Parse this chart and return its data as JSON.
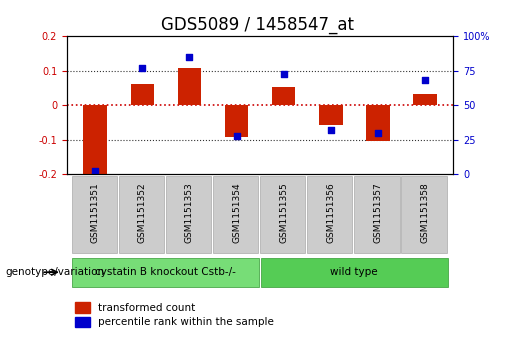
{
  "title": "GDS5089 / 1458547_at",
  "samples": [
    "GSM1151351",
    "GSM1151352",
    "GSM1151353",
    "GSM1151354",
    "GSM1151355",
    "GSM1151356",
    "GSM1151357",
    "GSM1151358"
  ],
  "bar_values": [
    -0.215,
    0.062,
    0.108,
    -0.093,
    0.052,
    -0.058,
    -0.105,
    0.032
  ],
  "scatter_values": [
    2,
    77,
    85,
    28,
    73,
    32,
    30,
    68
  ],
  "ylim_left": [
    -0.2,
    0.2
  ],
  "ylim_right": [
    0,
    100
  ],
  "yticks_left": [
    -0.2,
    -0.1,
    0,
    0.1,
    0.2
  ],
  "yticks_right": [
    0,
    25,
    50,
    75,
    100
  ],
  "ytick_labels_left": [
    "-0.2",
    "-0.1",
    "0",
    "0.1",
    "0.2"
  ],
  "ytick_labels_right": [
    "0",
    "25",
    "50",
    "75",
    "100%"
  ],
  "hlines": [
    0.1,
    -0.1
  ],
  "hline_zero_color": "#cc0000",
  "hline_dotted_color": "#333333",
  "bar_color": "#cc2200",
  "scatter_color": "#0000cc",
  "bar_width": 0.5,
  "group1_label": "cystatin B knockout Cstb-/-",
  "group2_label": "wild type",
  "group1_indices": [
    0,
    1,
    2,
    3
  ],
  "group2_indices": [
    4,
    5,
    6,
    7
  ],
  "group1_color": "#77dd77",
  "group2_color": "#55cc55",
  "genotype_label": "genotype/variation",
  "legend_bar_label": "transformed count",
  "legend_scatter_label": "percentile rank within the sample",
  "plot_bg": "#ffffff",
  "tick_area_bg": "#cccccc",
  "title_fontsize": 12,
  "tick_fontsize": 7,
  "annotation_fontsize": 8
}
